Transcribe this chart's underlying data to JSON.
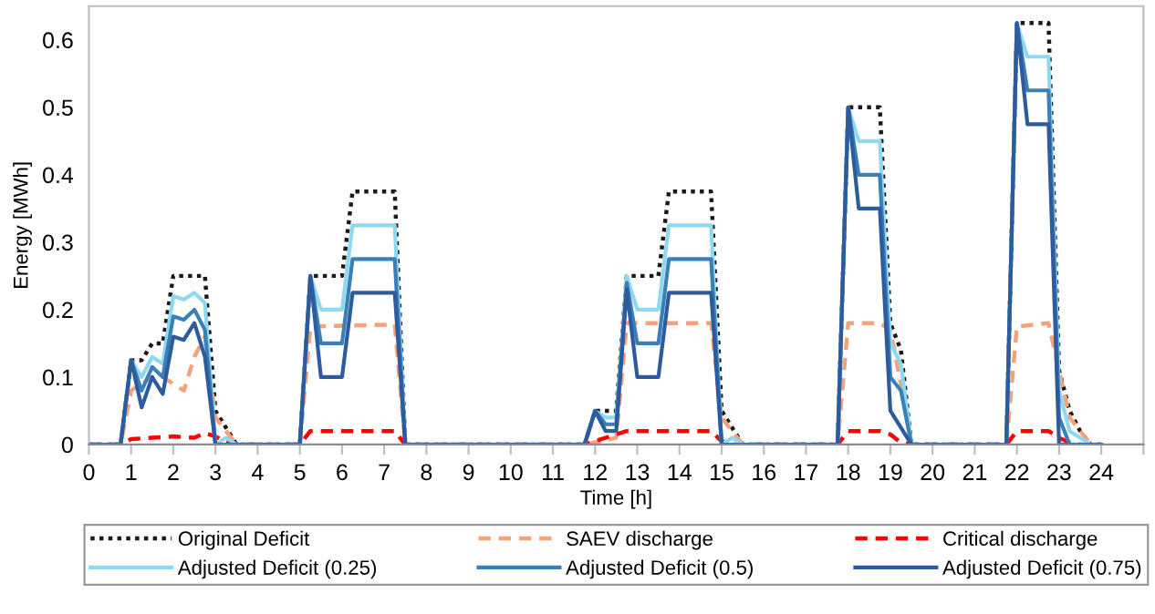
{
  "chart_data": {
    "type": "line",
    "xlabel": "Time [h]",
    "ylabel": "Energy [MWh]",
    "xlim": [
      0,
      25
    ],
    "xticks": [
      0,
      1,
      2,
      3,
      4,
      5,
      6,
      7,
      8,
      9,
      10,
      11,
      12,
      13,
      14,
      15,
      16,
      17,
      18,
      19,
      20,
      21,
      22,
      23,
      24,
      {
        "value": 25,
        "label": null
      }
    ],
    "ylim": [
      0,
      0.65
    ],
    "yticks": [
      0,
      0.1,
      0.2,
      0.3,
      0.4,
      0.5,
      0.6
    ],
    "grid": false,
    "legend": "bottom",
    "marker": "none",
    "series": [
      {
        "name": "Original Deficit",
        "color": "#1a1a1a",
        "line_style": "dotted",
        "x": [
          0,
          0.75,
          1,
          1.25,
          1.5,
          1.75,
          2,
          2.75,
          3,
          3.25,
          3.5,
          5,
          5.25,
          6,
          6.25,
          7.25,
          7.5,
          11.75,
          12,
          12.5,
          12.75,
          13.5,
          13.75,
          14.75,
          15,
          15.25,
          15.5,
          17.75,
          18,
          18.75,
          19,
          19.25,
          19.5,
          21.75,
          22,
          22.75,
          23,
          23.25,
          23.5,
          23.75,
          24
        ],
        "values": [
          0,
          0,
          0.125,
          0.125,
          0.15,
          0.15,
          0.25,
          0.25,
          0.05,
          0.025,
          0,
          0,
          0.25,
          0.25,
          0.375,
          0.375,
          0,
          0,
          0.05,
          0.05,
          0.25,
          0.25,
          0.375,
          0.375,
          0.05,
          0.025,
          0,
          0,
          0.5,
          0.5,
          0.18,
          0.14,
          0,
          0,
          0.625,
          0.625,
          0.11,
          0.05,
          0.02,
          0,
          0
        ]
      },
      {
        "name": "SAEV discharge",
        "color": "#f4a27a",
        "line_style": "dashed",
        "x": [
          0,
          0.75,
          1,
          1.25,
          1.5,
          1.75,
          2,
          2.25,
          2.5,
          2.75,
          3,
          3.25,
          3.5,
          5,
          5.25,
          7.25,
          7.5,
          11.75,
          12.5,
          12.75,
          14.75,
          15,
          15.25,
          15.5,
          17.75,
          18,
          18.75,
          19,
          19.25,
          19.5,
          21.75,
          22,
          22.75,
          23,
          23.25,
          23.5,
          23.75,
          24
        ],
        "values": [
          0,
          0,
          0.08,
          0.09,
          0.1,
          0.1,
          0.09,
          0.08,
          0.13,
          0.16,
          0.04,
          0.02,
          0,
          0,
          0.175,
          0.178,
          0,
          0,
          0.01,
          0.18,
          0.18,
          0.04,
          0.02,
          0,
          0,
          0.18,
          0.18,
          0.17,
          0.09,
          0,
          0,
          0.175,
          0.18,
          0.11,
          0.04,
          0.02,
          0,
          0
        ]
      },
      {
        "name": "Critical discharge",
        "color": "#ff0000",
        "line_style": "dashed",
        "x": [
          0,
          0.75,
          1,
          1.5,
          2,
          2.5,
          2.75,
          3,
          3.25,
          3.5,
          5,
          5.25,
          7.25,
          7.5,
          11.75,
          12.75,
          14.75,
          15,
          15.25,
          17.75,
          18,
          18.75,
          19,
          19.25,
          19.5,
          21.75,
          22,
          22.75,
          23,
          23.25,
          23.5,
          24
        ],
        "values": [
          0,
          0,
          0.008,
          0.01,
          0.012,
          0.01,
          0.017,
          0.012,
          0.003,
          0,
          0,
          0.02,
          0.02,
          0,
          0,
          0.02,
          0.02,
          0.005,
          0,
          0,
          0.02,
          0.02,
          0.015,
          0.003,
          0,
          0,
          0.02,
          0.02,
          0.01,
          0.003,
          0,
          0
        ]
      },
      {
        "name": "Adjusted Deficit (0.25)",
        "color": "#8fd8f2",
        "line_style": "solid",
        "x": [
          0,
          0.75,
          1,
          1.25,
          1.5,
          1.75,
          2,
          2.25,
          2.5,
          2.75,
          3,
          3.25,
          3.5,
          5,
          5.25,
          5.5,
          6,
          6.25,
          7.25,
          7.5,
          11.75,
          12,
          12.25,
          12.5,
          12.75,
          13,
          13.5,
          13.75,
          14.75,
          15,
          15.25,
          15.5,
          17.75,
          18,
          18.25,
          18.75,
          19,
          19.25,
          19.5,
          21.75,
          22,
          22.25,
          22.75,
          23,
          23.25,
          23.5,
          23.75,
          24
        ],
        "values": [
          0,
          0,
          0.125,
          0.1,
          0.13,
          0.12,
          0.22,
          0.215,
          0.225,
          0.21,
          0,
          0.01,
          0,
          0,
          0.25,
          0.2,
          0.2,
          0.325,
          0.325,
          0,
          0,
          0.05,
          0.04,
          0.04,
          0.25,
          0.2,
          0.2,
          0.325,
          0.325,
          0,
          0.01,
          0,
          0,
          0.5,
          0.45,
          0.45,
          0.15,
          0.12,
          0,
          0,
          0.625,
          0.575,
          0.575,
          0.08,
          0.02,
          0.01,
          0,
          0
        ]
      },
      {
        "name": "Adjusted Deficit (0.5)",
        "color": "#3a7fb5",
        "line_style": "solid",
        "x": [
          0,
          0.75,
          1,
          1.25,
          1.5,
          1.75,
          2,
          2.25,
          2.5,
          2.75,
          3,
          3.5,
          5,
          5.25,
          5.5,
          6,
          6.25,
          7.25,
          7.5,
          11.75,
          12,
          12.25,
          12.5,
          12.75,
          13,
          13.5,
          13.75,
          14.75,
          15,
          17.75,
          18,
          18.25,
          18.75,
          19,
          19.25,
          19.5,
          21.75,
          22,
          22.25,
          22.75,
          23,
          23.25,
          24
        ],
        "values": [
          0,
          0,
          0.125,
          0.08,
          0.115,
          0.1,
          0.19,
          0.185,
          0.2,
          0.17,
          0,
          0,
          0,
          0.25,
          0.15,
          0.15,
          0.275,
          0.275,
          0,
          0,
          0.05,
          0.03,
          0.03,
          0.24,
          0.15,
          0.15,
          0.275,
          0.275,
          0,
          0,
          0.5,
          0.4,
          0.4,
          0.1,
          0.08,
          0,
          0,
          0.625,
          0.525,
          0.525,
          0.04,
          0,
          0
        ]
      },
      {
        "name": "Adjusted Deficit (0.75)",
        "color": "#2e5a9e",
        "line_style": "solid",
        "x": [
          0,
          0.75,
          1,
          1.25,
          1.5,
          1.75,
          2,
          2.25,
          2.5,
          2.75,
          3,
          5,
          5.25,
          5.5,
          6,
          6.25,
          7.25,
          7.5,
          11.75,
          12,
          12.25,
          12.5,
          12.75,
          13,
          13.5,
          13.75,
          14.75,
          15,
          17.75,
          18,
          18.25,
          18.75,
          19,
          19.5,
          21.75,
          22,
          22.25,
          22.75,
          23,
          24
        ],
        "values": [
          0,
          0,
          0.125,
          0.055,
          0.1,
          0.075,
          0.16,
          0.155,
          0.18,
          0.13,
          0,
          0,
          0.25,
          0.1,
          0.1,
          0.225,
          0.225,
          0,
          0,
          0.05,
          0.02,
          0.02,
          0.23,
          0.1,
          0.1,
          0.225,
          0.225,
          0,
          0,
          0.5,
          0.35,
          0.35,
          0.05,
          0,
          0,
          0.625,
          0.475,
          0.475,
          0,
          0
        ]
      }
    ]
  }
}
